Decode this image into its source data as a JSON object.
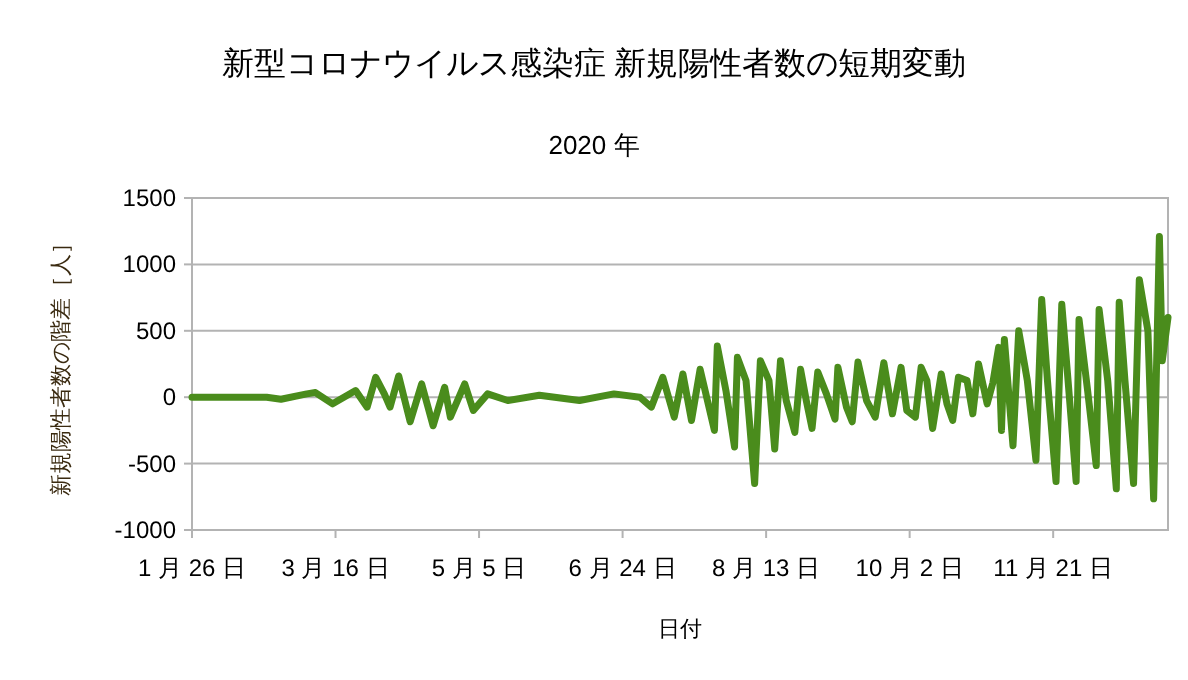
{
  "chart_data": {
    "type": "line",
    "title": "新型コロナウイルス感染症 新規陽性者数の短期変動",
    "subtitle": "2020 年",
    "xlabel": "日付",
    "ylabel": "新規陽性者数の階差［人］",
    "xlim": [
      "2020-01-26",
      "2020-12-31"
    ],
    "xticks": [
      {
        "value": "2020-01-26",
        "label": "1 月 26 日"
      },
      {
        "value": "2020-03-16",
        "label": "3 月 16 日"
      },
      {
        "value": "2020-05-05",
        "label": "5 月 5 日"
      },
      {
        "value": "2020-06-24",
        "label": "6 月 24 日"
      },
      {
        "value": "2020-08-13",
        "label": "8 月 13 日"
      },
      {
        "value": "2020-10-02",
        "label": "10 月 2 日"
      },
      {
        "value": "2020-11-21",
        "label": "11 月 21 日"
      }
    ],
    "ylim": [
      -1000,
      1500
    ],
    "yticks": [
      -1000,
      -500,
      0,
      500,
      1000,
      1500
    ],
    "grid": "y",
    "marker": "none",
    "line_style": "solid",
    "x": [
      "2020-01-26",
      "2020-02-21",
      "2020-02-26",
      "2020-03-06",
      "2020-03-09",
      "2020-03-15",
      "2020-03-23",
      "2020-03-27",
      "2020-03-30",
      "2020-04-02",
      "2020-04-04",
      "2020-04-07",
      "2020-04-11",
      "2020-04-15",
      "2020-04-19",
      "2020-04-23",
      "2020-04-25",
      "2020-04-30",
      "2020-05-03",
      "2020-05-08",
      "2020-05-15",
      "2020-05-26",
      "2020-06-09",
      "2020-06-21",
      "2020-06-30",
      "2020-07-04",
      "2020-07-08",
      "2020-07-12",
      "2020-07-15",
      "2020-07-18",
      "2020-07-21",
      "2020-07-26",
      "2020-07-27",
      "2020-07-30",
      "2020-08-02",
      "2020-08-03",
      "2020-08-06",
      "2020-08-09",
      "2020-08-11",
      "2020-08-14",
      "2020-08-16",
      "2020-08-18",
      "2020-08-20",
      "2020-08-23",
      "2020-08-25",
      "2020-08-27",
      "2020-08-29",
      "2020-08-31",
      "2020-09-03",
      "2020-09-06",
      "2020-09-07",
      "2020-09-10",
      "2020-09-12",
      "2020-09-14",
      "2020-09-17",
      "2020-09-20",
      "2020-09-23",
      "2020-09-26",
      "2020-09-29",
      "2020-10-01",
      "2020-10-04",
      "2020-10-06",
      "2020-10-08",
      "2020-10-10",
      "2020-10-13",
      "2020-10-15",
      "2020-10-17",
      "2020-10-19",
      "2020-10-22",
      "2020-10-24",
      "2020-10-26",
      "2020-10-29",
      "2020-10-31",
      "2020-11-02",
      "2020-11-03",
      "2020-11-04",
      "2020-11-07",
      "2020-11-09",
      "2020-11-12",
      "2020-11-15",
      "2020-11-17",
      "2020-11-19",
      "2020-11-22",
      "2020-11-24",
      "2020-11-26",
      "2020-11-29",
      "2020-11-30",
      "2020-12-03",
      "2020-12-06",
      "2020-12-07",
      "2020-12-10",
      "2020-12-13",
      "2020-12-14",
      "2020-12-16",
      "2020-12-19",
      "2020-12-21",
      "2020-12-24",
      "2020-12-26",
      "2020-12-28",
      "2020-12-29",
      "2020-12-31"
    ],
    "series": [
      {
        "color": "#4a8c1c",
        "values": [
          0,
          0,
          -15,
          25,
          35,
          -50,
          50,
          -75,
          150,
          25,
          -75,
          160,
          -185,
          100,
          -215,
          75,
          -150,
          100,
          -100,
          25,
          -25,
          15,
          -25,
          25,
          0,
          -75,
          150,
          -150,
          175,
          -175,
          210,
          -250,
          385,
          50,
          -375,
          300,
          125,
          -650,
          275,
          125,
          -390,
          275,
          -25,
          -265,
          210,
          -25,
          -235,
          190,
          25,
          -165,
          225,
          -75,
          -185,
          265,
          -25,
          -150,
          260,
          -125,
          225,
          -100,
          -150,
          225,
          125,
          -235,
          175,
          -50,
          -175,
          150,
          125,
          -125,
          250,
          -50,
          110,
          375,
          -250,
          435,
          -365,
          500,
          125,
          -475,
          735,
          125,
          -635,
          700,
          175,
          -635,
          585,
          50,
          -515,
          660,
          125,
          -690,
          715,
          125,
          -650,
          885,
          500,
          -765,
          1210,
          275,
          600
        ]
      }
    ]
  }
}
